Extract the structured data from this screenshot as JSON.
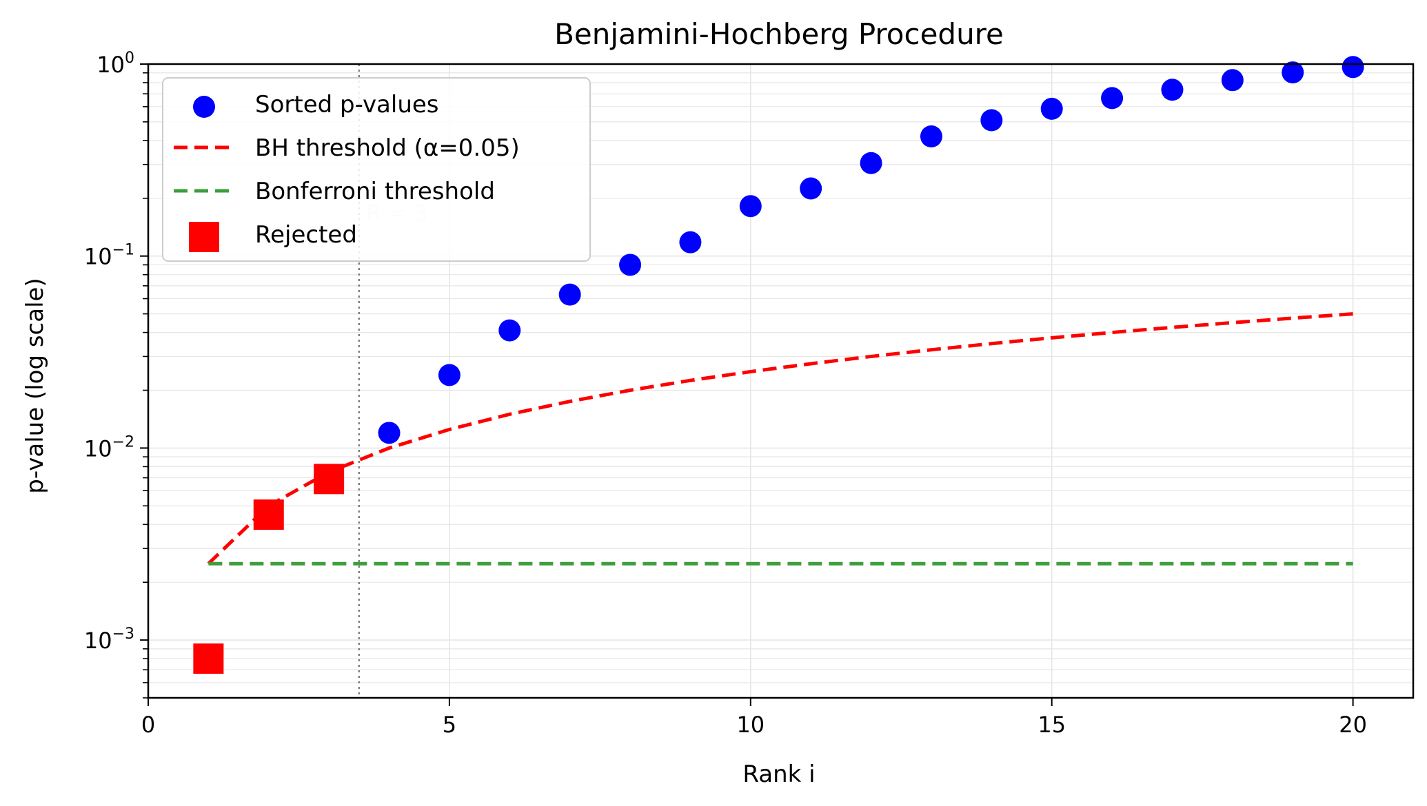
{
  "chart_data": {
    "type": "scatter",
    "title": "Benjamini-Hochberg Procedure",
    "xlabel": "Rank i",
    "ylabel": "p-value (log scale)",
    "xlim": [
      0,
      21
    ],
    "ylim": [
      0.0005,
      1.0
    ],
    "y_scale": "log",
    "x_ticks": [
      0,
      5,
      10,
      15,
      20
    ],
    "y_ticks": [
      {
        "value": 0.001,
        "base": "10",
        "exp": "−3"
      },
      {
        "value": 0.01,
        "base": "10",
        "exp": "−2"
      },
      {
        "value": 0.1,
        "base": "10",
        "exp": "−1"
      },
      {
        "value": 1.0,
        "base": "10",
        "exp": "0"
      }
    ],
    "grid": true,
    "legend_position": "top-left",
    "alpha": 0.05,
    "num_tests": 20,
    "series": [
      {
        "name": "Sorted p-values",
        "kind": "scatter",
        "marker": "circle",
        "color": "#0000ff",
        "x": [
          4,
          5,
          6,
          7,
          8,
          9,
          10,
          11,
          12,
          13,
          14,
          15,
          16,
          17,
          18,
          19,
          20
        ],
        "y": [
          0.012,
          0.024,
          0.041,
          0.063,
          0.09,
          0.118,
          0.182,
          0.225,
          0.305,
          0.42,
          0.51,
          0.585,
          0.665,
          0.735,
          0.825,
          0.905,
          0.965
        ]
      },
      {
        "name": "BH threshold (α=0.05)",
        "kind": "line",
        "style": "dashed",
        "color": "#ff0000",
        "x": [
          1,
          2,
          3,
          4,
          5,
          6,
          7,
          8,
          9,
          10,
          11,
          12,
          13,
          14,
          15,
          16,
          17,
          18,
          19,
          20
        ],
        "y": [
          0.0025,
          0.005,
          0.0075,
          0.01,
          0.0125,
          0.015,
          0.0175,
          0.02,
          0.0225,
          0.025,
          0.0275,
          0.03,
          0.0325,
          0.035,
          0.0375,
          0.04,
          0.0425,
          0.045,
          0.0475,
          0.05
        ]
      },
      {
        "name": "Bonferroni threshold",
        "kind": "line",
        "style": "dashed",
        "color": "#3c9e3c",
        "x": [
          1,
          20
        ],
        "y": [
          0.0025,
          0.0025
        ]
      },
      {
        "name": "Rejected",
        "kind": "scatter",
        "marker": "square",
        "color": "#ff0000",
        "x": [
          1,
          2,
          3
        ],
        "y": [
          0.0008,
          0.0045,
          0.0069
        ]
      }
    ],
    "annotations": [
      {
        "type": "vline",
        "x": 3.5,
        "style": "dotted",
        "color": "#808080",
        "label": "R = 3"
      }
    ]
  }
}
